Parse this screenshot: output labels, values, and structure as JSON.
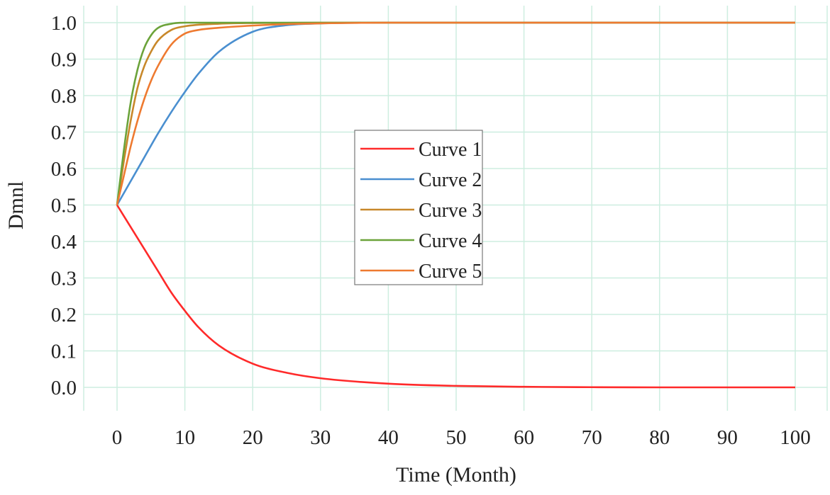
{
  "chart_data": {
    "type": "line",
    "title": "",
    "xlabel": "Time (Month)",
    "ylabel": "Dmnl",
    "xlim": [
      0,
      100
    ],
    "ylim": [
      0,
      1.0
    ],
    "xticks": [
      "0",
      "10",
      "20",
      "30",
      "40",
      "50",
      "60",
      "70",
      "80",
      "90",
      "100"
    ],
    "yticks": [
      "0.0",
      "0.1",
      "0.2",
      "0.3",
      "0.4",
      "0.5",
      "0.6",
      "0.7",
      "0.8",
      "0.9",
      "1.0"
    ],
    "grid": true,
    "grid_color": "#cdeee0",
    "legend_placement": "center",
    "series": [
      {
        "name": "Curve 1",
        "color": "#ff2a2a",
        "x": [
          0,
          2,
          4,
          6,
          8,
          10,
          12,
          15,
          20,
          25,
          30,
          40,
          50,
          60,
          70,
          80,
          90,
          100
        ],
        "y": [
          0.5,
          0.44,
          0.38,
          0.32,
          0.26,
          0.21,
          0.165,
          0.115,
          0.065,
          0.04,
          0.025,
          0.01,
          0.004,
          0.0015,
          0.0005,
          0,
          0,
          0
        ]
      },
      {
        "name": "Curve 2",
        "color": "#4a8fd0",
        "x": [
          0,
          2,
          4,
          6,
          8,
          10,
          12,
          15,
          20,
          25,
          30,
          40,
          50,
          60,
          70,
          80,
          90,
          100
        ],
        "y": [
          0.5,
          0.565,
          0.63,
          0.695,
          0.755,
          0.81,
          0.86,
          0.92,
          0.975,
          0.993,
          0.998,
          1,
          1,
          1,
          1,
          1,
          1,
          1
        ]
      },
      {
        "name": "Curve 3",
        "color": "#c8882a",
        "x": [
          0,
          1,
          2,
          3,
          4,
          5,
          6,
          8,
          10,
          15,
          20,
          30,
          40,
          50,
          60,
          70,
          80,
          90,
          100
        ],
        "y": [
          0.5,
          0.62,
          0.73,
          0.82,
          0.88,
          0.92,
          0.95,
          0.98,
          0.99,
          0.997,
          0.999,
          1,
          1,
          1,
          1,
          1,
          1,
          1,
          1
        ]
      },
      {
        "name": "Curve 4",
        "color": "#6ba33a",
        "x": [
          0,
          1,
          2,
          3,
          4,
          5,
          6,
          8,
          10,
          20,
          30,
          40,
          50,
          60,
          70,
          80,
          90,
          100
        ],
        "y": [
          0.5,
          0.65,
          0.78,
          0.87,
          0.93,
          0.965,
          0.985,
          0.997,
          1,
          1,
          1,
          1,
          1,
          1,
          1,
          1,
          1,
          1
        ]
      },
      {
        "name": "Curve 5",
        "color": "#ee7a30",
        "x": [
          0,
          1,
          2,
          3,
          4,
          5,
          6,
          8,
          10,
          12,
          15,
          20,
          25,
          30,
          40,
          50,
          60,
          70,
          80,
          90,
          100
        ],
        "y": [
          0.5,
          0.58,
          0.66,
          0.73,
          0.79,
          0.84,
          0.88,
          0.94,
          0.97,
          0.98,
          0.986,
          0.992,
          0.996,
          0.998,
          1,
          1,
          1,
          1,
          1,
          1,
          1
        ]
      }
    ]
  }
}
